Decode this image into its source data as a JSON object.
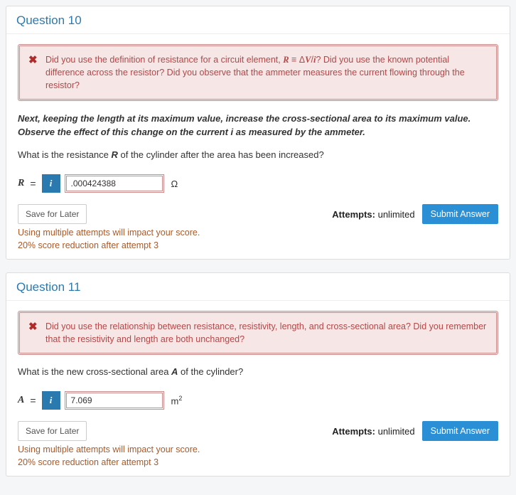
{
  "q10": {
    "title": "Question 10",
    "feedback_html": "Did you use the definition of resistance for a circuit element, <span style=\"font-style:italic;font-weight:700;font-family:Georgia,serif\">R</span> ≡ Δ<span style=\"font-style:italic;font-weight:700;font-family:Georgia,serif\">V</span>/<span style=\"font-style:italic;font-weight:700;font-family:Georgia,serif\">i</span>? Did you use the known potential difference across the resistor? Did you observe that the ammeter measures the current flowing through the resistor?",
    "instruction": "Next, keeping the length at its maximum value, increase the cross-sectional area to its maximum value. Observe the effect of this change on the current i as measured by the ammeter.",
    "prompt_html": "What is the resistance <span class=\"italic-bold\">R</span> of the cylinder after the area has been increased?",
    "var": "R",
    "value": ".000424388",
    "unit_html": "Ω",
    "save_label": "Save for Later",
    "attempts_label": "Attempts:",
    "attempts_value": "unlimited",
    "submit_label": "Submit Answer",
    "note_line1": "Using multiple attempts will impact your score.",
    "note_line2": "20% score reduction after attempt 3"
  },
  "q11": {
    "title": "Question 11",
    "feedback_html": "Did you use the relationship between resistance, resistivity, length, and cross-sectional area? Did you remember that the resistivity and length are both unchanged?",
    "prompt_html": "What is the new cross-sectional area <span class=\"italic-bold\">A</span> of the cylinder?",
    "var": "A",
    "value": "7.069",
    "unit_html": "m<sup>2</sup>",
    "save_label": "Save for Later",
    "attempts_label": "Attempts:",
    "attempts_value": "unlimited",
    "submit_label": "Submit Answer",
    "note_line1": "Using multiple attempts will impact your score.",
    "note_line2": "20% score reduction after attempt 3"
  },
  "colors": {
    "link": "#2a7ab0",
    "error_border": "#c98d8d",
    "error_bg": "#f6e6e6",
    "error_text": "#b34747",
    "warn_text": "#a85a2a",
    "primary_btn": "#2a8fd4"
  }
}
